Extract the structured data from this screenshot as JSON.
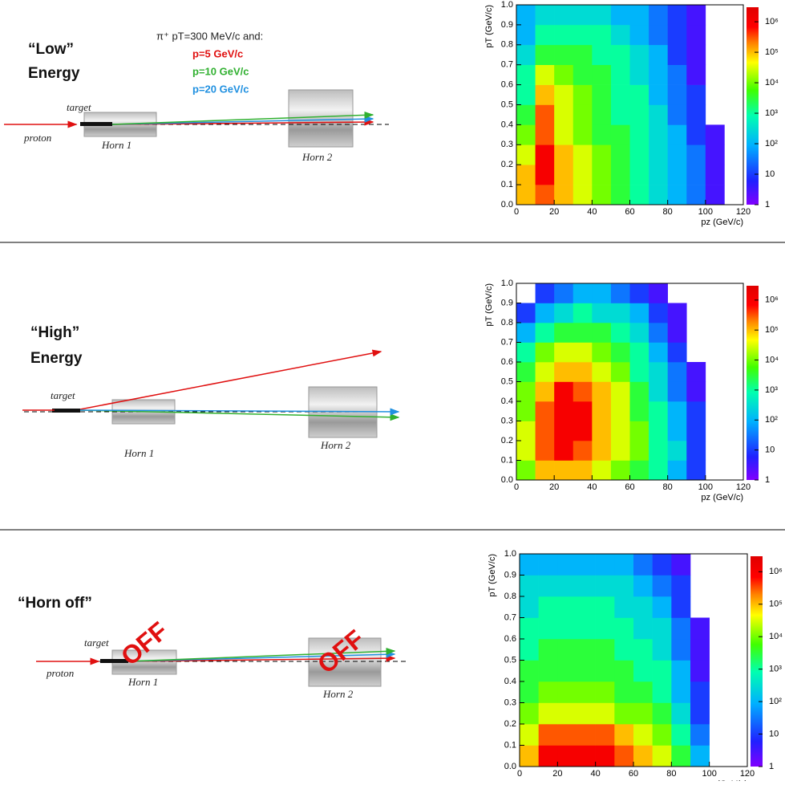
{
  "legend": {
    "header": "π⁺ pT=300 MeV/c  and:",
    "lines": [
      "p=5 GeV/c",
      "p=10 GeV/c",
      "p=20 GeV/c"
    ],
    "colors": [
      "#e01010",
      "#30b030",
      "#2090e0"
    ]
  },
  "axes": {
    "xlabel": "pz (GeV/c)",
    "ylabel": "pT (GeV/c)",
    "xlim": [
      0,
      120
    ],
    "ylim": [
      0,
      1
    ],
    "xticks": [
      0,
      20,
      40,
      60,
      80,
      100,
      120
    ],
    "yticks": [
      {
        "value": 0,
        "label": "0.0"
      },
      0.1,
      0.2,
      0.3,
      0.4,
      0.5,
      0.6,
      0.7,
      0.8,
      0.9,
      {
        "value": 1,
        "label": "1.0"
      }
    ],
    "zlim": [
      1,
      3000000
    ],
    "zticks": [
      1,
      10,
      {
        "value": 100,
        "label": "10²"
      },
      {
        "value": 1000,
        "label": "10³"
      },
      {
        "value": 10000,
        "label": "10⁴"
      },
      {
        "value": 100000,
        "label": "10⁵"
      },
      {
        "value": 1000000,
        "label": "10⁶"
      }
    ]
  },
  "panels": [
    {
      "title": [
        "“Low”",
        "Energy"
      ],
      "labels": {
        "target": "target",
        "proton": "proton",
        "horn1": "Horn 1",
        "horn2": "Horn 2"
      },
      "heatmap": {
        "cells": [
          [
            100000,
            300000,
            100000,
            30000,
            10000,
            3000,
            1000,
            300,
            100,
            30,
            3,
            null
          ],
          [
            100000,
            1000000,
            100000,
            30000,
            10000,
            3000,
            1000,
            300,
            100,
            30,
            3,
            null
          ],
          [
            30000,
            1000000,
            100000,
            30000,
            10000,
            3000,
            1000,
            300,
            100,
            30,
            3,
            null
          ],
          [
            10000,
            300000,
            30000,
            10000,
            3000,
            3000,
            1000,
            300,
            100,
            10,
            3,
            null
          ],
          [
            3000,
            300000,
            30000,
            10000,
            3000,
            1000,
            1000,
            300,
            30,
            10,
            null,
            null
          ],
          [
            1000,
            100000,
            30000,
            10000,
            3000,
            1000,
            1000,
            100,
            30,
            10,
            null,
            null
          ],
          [
            1000,
            30000,
            10000,
            3000,
            3000,
            1000,
            300,
            100,
            30,
            3,
            null,
            null
          ],
          [
            300,
            3000,
            3000,
            3000,
            1000,
            1000,
            300,
            100,
            10,
            3,
            null,
            null
          ],
          [
            100,
            1000,
            1000,
            1000,
            1000,
            300,
            100,
            30,
            10,
            3,
            null,
            null
          ],
          [
            100,
            300,
            300,
            300,
            300,
            100,
            100,
            30,
            10,
            3,
            null,
            null
          ]
        ]
      }
    },
    {
      "title": [
        "“High”",
        "Energy"
      ],
      "labels": {
        "target": "target",
        "horn1": "Horn 1",
        "horn2": "Horn 2"
      },
      "heatmap": {
        "cells": [
          [
            10000,
            100000,
            100000,
            100000,
            30000,
            10000,
            3000,
            1000,
            100,
            10,
            null,
            null
          ],
          [
            30000,
            300000,
            1000000,
            300000,
            100000,
            30000,
            10000,
            1000,
            300,
            10,
            null,
            null
          ],
          [
            30000,
            300000,
            1000000,
            1000000,
            100000,
            30000,
            10000,
            1000,
            100,
            10,
            null,
            null
          ],
          [
            10000,
            300000,
            1000000,
            1000000,
            100000,
            30000,
            3000,
            1000,
            100,
            10,
            null,
            null
          ],
          [
            10000,
            100000,
            1000000,
            300000,
            100000,
            30000,
            3000,
            300,
            30,
            3,
            null,
            null
          ],
          [
            3000,
            30000,
            100000,
            100000,
            30000,
            10000,
            1000,
            300,
            30,
            3,
            null,
            null
          ],
          [
            1000,
            10000,
            30000,
            30000,
            10000,
            3000,
            1000,
            100,
            10,
            null,
            null,
            null
          ],
          [
            100,
            1000,
            3000,
            3000,
            3000,
            1000,
            300,
            30,
            3,
            null,
            null,
            null
          ],
          [
            10,
            100,
            300,
            1000,
            300,
            300,
            100,
            10,
            3,
            null,
            null,
            null
          ],
          [
            null,
            10,
            30,
            100,
            100,
            30,
            10,
            3,
            null,
            null,
            null,
            null
          ]
        ]
      }
    },
    {
      "title": [
        "“Horn off”"
      ],
      "labels": {
        "target": "target",
        "proton": "proton",
        "horn1": "Horn 1",
        "horn2": "Horn 2",
        "off": "OFF"
      },
      "heatmap": {
        "cells": [
          [
            100000,
            1000000,
            1000000,
            1000000,
            1000000,
            300000,
            100000,
            30000,
            3000,
            100,
            null,
            null
          ],
          [
            30000,
            300000,
            300000,
            300000,
            300000,
            100000,
            30000,
            10000,
            1000,
            30,
            null,
            null
          ],
          [
            10000,
            30000,
            30000,
            30000,
            30000,
            10000,
            10000,
            3000,
            300,
            10,
            null,
            null
          ],
          [
            3000,
            10000,
            10000,
            10000,
            10000,
            3000,
            3000,
            1000,
            100,
            10,
            null,
            null
          ],
          [
            3000,
            3000,
            3000,
            3000,
            3000,
            3000,
            1000,
            1000,
            100,
            3,
            null,
            null
          ],
          [
            1000,
            3000,
            3000,
            3000,
            3000,
            1000,
            1000,
            300,
            30,
            3,
            null,
            null
          ],
          [
            1000,
            1000,
            1000,
            1000,
            1000,
            1000,
            300,
            300,
            30,
            3,
            null,
            null
          ],
          [
            300,
            1000,
            1000,
            1000,
            1000,
            300,
            300,
            100,
            10,
            null,
            null,
            null
          ],
          [
            300,
            300,
            300,
            300,
            300,
            300,
            100,
            30,
            10,
            null,
            null,
            null
          ],
          [
            100,
            100,
            100,
            100,
            100,
            100,
            30,
            10,
            3,
            null,
            null,
            null
          ]
        ]
      }
    }
  ]
}
